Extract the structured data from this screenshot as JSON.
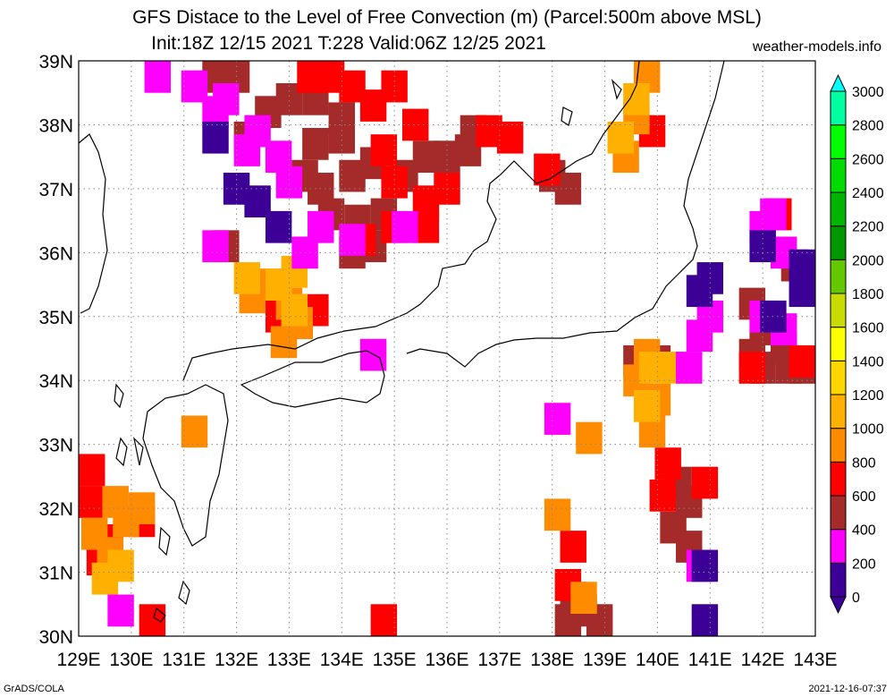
{
  "title": "GFS Distace to the Level of Free Convection (m) (Parcel:500m above MSL)",
  "subtitle": "Init:18Z 12/15 2021 T:228 Valid:06Z 12/25 2021",
  "website": "weather-models.info",
  "footer_left": "GrADS/COLA",
  "footer_right": "2021-12-16-07:37",
  "map": {
    "lon_labels": [
      "129E",
      "130E",
      "131E",
      "132E",
      "133E",
      "134E",
      "135E",
      "136E",
      "137E",
      "138E",
      "139E",
      "140E",
      "141E",
      "142E",
      "143E"
    ],
    "lat_labels": [
      "39N",
      "38N",
      "37N",
      "36N",
      "35N",
      "34N",
      "33N",
      "32N",
      "31N",
      "30N"
    ],
    "lon_range": [
      129,
      143
    ],
    "lat_range": [
      30,
      39
    ],
    "grid": "dotted"
  },
  "colorbar": {
    "levels": [
      "0",
      "200",
      "400",
      "600",
      "800",
      "1000",
      "1200",
      "1400",
      "1600",
      "1800",
      "2000",
      "2200",
      "2400",
      "2600",
      "2800",
      "3000"
    ],
    "colors": [
      "#3c0096",
      "#ff00ff",
      "#a52a2a",
      "#ff0000",
      "#ff8c00",
      "#ffb000",
      "#ffd700",
      "#ffff00",
      "#c8dc00",
      "#64c800",
      "#009600",
      "#00b400",
      "#00dc00",
      "#00ff00",
      "#00ffa0",
      "#00ffff"
    ]
  },
  "fields": [
    {
      "color": "#a52a2a",
      "cells": [
        [
          133,
          38.4
        ],
        [
          133.5,
          38.4
        ],
        [
          134,
          38.1
        ],
        [
          134,
          37.8
        ],
        [
          133.5,
          37.7
        ],
        [
          133.3,
          37.2
        ],
        [
          133.6,
          37.0
        ],
        [
          134.2,
          37.2
        ],
        [
          134.6,
          37.4
        ],
        [
          135.2,
          37.2
        ],
        [
          135.6,
          37.5
        ],
        [
          136.0,
          37.5
        ],
        [
          136.4,
          37.6
        ],
        [
          136.5,
          37.9
        ],
        [
          134.8,
          36.6
        ],
        [
          134.3,
          36.5
        ],
        [
          133.8,
          36.6
        ],
        [
          134.2,
          36.0
        ],
        [
          134.6,
          36.1
        ],
        [
          132.6,
          38.2
        ],
        [
          132.2,
          37.8
        ],
        [
          131.6,
          38.8
        ],
        [
          132.0,
          38.8
        ],
        [
          138.0,
          37.2
        ],
        [
          138.3,
          37.0
        ],
        [
          140.4,
          32.4
        ],
        [
          140.6,
          32.1
        ],
        [
          140.3,
          31.7
        ],
        [
          140.6,
          31.4
        ],
        [
          142.0,
          34.2
        ],
        [
          142.5,
          34.2
        ],
        [
          142.0,
          34.8
        ],
        [
          141.8,
          35.2
        ],
        [
          141.8,
          34.4
        ],
        [
          142.4,
          34.5
        ],
        [
          142.8,
          34.2
        ],
        [
          138.3,
          30.2
        ],
        [
          138.6,
          30.4
        ],
        [
          138.9,
          30.1
        ],
        [
          138.4,
          30.6
        ],
        [
          142.6,
          35.8
        ],
        [
          140.0,
          34.3
        ],
        [
          139.6,
          34.3
        ],
        [
          131.8,
          36.1
        ]
      ]
    },
    {
      "color": "#ff0000",
      "cells": [
        [
          133.4,
          38.8
        ],
        [
          133.8,
          38.8
        ],
        [
          134.2,
          38.6
        ],
        [
          134.6,
          38.3
        ],
        [
          135.0,
          38.6
        ],
        [
          135.4,
          38.0
        ],
        [
          134.8,
          37.6
        ],
        [
          135.0,
          37.1
        ],
        [
          135.6,
          36.8
        ],
        [
          136.0,
          37.0
        ],
        [
          136.8,
          37.9
        ],
        [
          137.2,
          37.8
        ],
        [
          134.4,
          36.2
        ],
        [
          135.0,
          36.4
        ],
        [
          135.6,
          36.4
        ],
        [
          132.8,
          35.0
        ],
        [
          133.2,
          34.9
        ],
        [
          133.5,
          35.1
        ],
        [
          130.2,
          31.8
        ],
        [
          129.6,
          31.5
        ],
        [
          129.2,
          32.6
        ],
        [
          129.2,
          32.1
        ],
        [
          129.4,
          31.2
        ],
        [
          130.4,
          30.2
        ],
        [
          134.8,
          30.2
        ],
        [
          138.4,
          31.4
        ],
        [
          138.3,
          30.8
        ],
        [
          140.2,
          32.7
        ],
        [
          140.1,
          32.2
        ],
        [
          140.9,
          32.4
        ],
        [
          137.9,
          37.3
        ],
        [
          142.3,
          36.6
        ],
        [
          141.8,
          34.2
        ],
        [
          139.9,
          37.9
        ],
        [
          142.8,
          34.3
        ]
      ]
    },
    {
      "color": "#ff8c00",
      "cells": [
        [
          129.3,
          31.6
        ],
        [
          129.6,
          31.3
        ],
        [
          129.9,
          31.8
        ],
        [
          129.7,
          32.1
        ],
        [
          130.2,
          32.0
        ],
        [
          132.3,
          35.3
        ],
        [
          132.6,
          35.5
        ],
        [
          133.0,
          35.2
        ],
        [
          133.2,
          34.9
        ],
        [
          131.2,
          33.2
        ],
        [
          138.1,
          31.9
        ],
        [
          138.6,
          30.6
        ],
        [
          138.7,
          33.1
        ],
        [
          139.9,
          33.2
        ],
        [
          139.6,
          34.0
        ],
        [
          139.8,
          34.4
        ],
        [
          140.0,
          33.7
        ],
        [
          139.4,
          37.5
        ],
        [
          139.6,
          38.1
        ],
        [
          139.8,
          38.8
        ],
        [
          132.9,
          34.6
        ]
      ]
    },
    {
      "color": "#ffb000",
      "cells": [
        [
          132.2,
          35.6
        ],
        [
          132.8,
          35.5
        ],
        [
          133.1,
          35.1
        ],
        [
          129.8,
          31.1
        ],
        [
          129.5,
          30.9
        ],
        [
          139.8,
          33.6
        ],
        [
          139.9,
          34.2
        ],
        [
          140.2,
          34.2
        ],
        [
          139.6,
          38.4
        ],
        [
          139.3,
          37.8
        ],
        [
          133.1,
          35.7
        ]
      ]
    },
    {
      "color": "#ff00ff",
      "cells": [
        [
          130.5,
          38.9
        ],
        [
          131.8,
          38.4
        ],
        [
          131.6,
          38.2
        ],
        [
          131.2,
          38.6
        ],
        [
          132.2,
          37.6
        ],
        [
          132.4,
          37.9
        ],
        [
          132.8,
          37.5
        ],
        [
          133.0,
          37.1
        ],
        [
          133.6,
          36.4
        ],
        [
          133.3,
          36.0
        ],
        [
          134.2,
          36.2
        ],
        [
          135.2,
          36.4
        ],
        [
          131.6,
          36.1
        ],
        [
          140.8,
          34.7
        ],
        [
          141.0,
          35.0
        ],
        [
          140.6,
          34.2
        ],
        [
          142.0,
          36.4
        ],
        [
          142.4,
          36.0
        ],
        [
          142.0,
          35.0
        ],
        [
          142.4,
          34.8
        ],
        [
          140.8,
          31.1
        ],
        [
          129.8,
          30.4
        ],
        [
          134.6,
          34.4
        ],
        [
          138.1,
          33.4
        ],
        [
          142.2,
          36.6
        ]
      ]
    },
    {
      "color": "#3c0096",
      "cells": [
        [
          131.6,
          37.8
        ],
        [
          132.0,
          37.0
        ],
        [
          132.4,
          36.8
        ],
        [
          132.8,
          36.4
        ],
        [
          141.0,
          35.6
        ],
        [
          140.8,
          35.4
        ],
        [
          142.2,
          35.0
        ],
        [
          142.8,
          35.4
        ],
        [
          142.0,
          36.1
        ],
        [
          142.8,
          35.8
        ],
        [
          140.9,
          30.2
        ],
        [
          140.9,
          31.1
        ]
      ]
    }
  ]
}
